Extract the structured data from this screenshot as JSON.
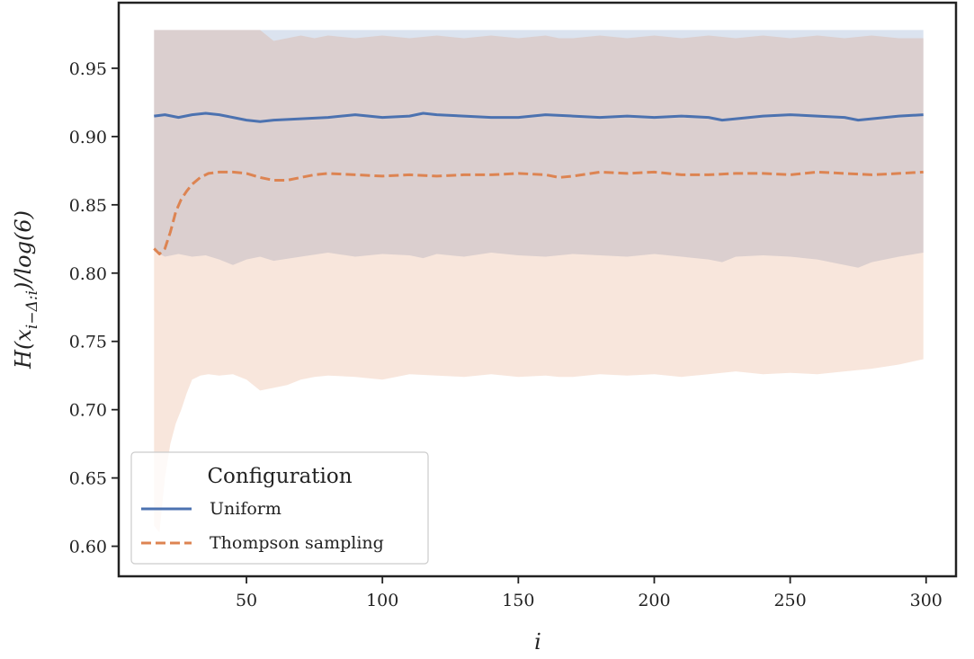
{
  "chart_data": {
    "type": "line",
    "xlabel": "i",
    "ylabel": "H(x_{i−Δ:i})/log(6)",
    "ylabel_parts": {
      "pre": "H(x",
      "sub": "i−Δ:i",
      "post": ")/log(6)"
    },
    "xlim": [
      3,
      311
    ],
    "ylim": [
      0.578,
      0.998
    ],
    "x_ticks": [
      50,
      100,
      150,
      200,
      250,
      300
    ],
    "y_ticks": [
      0.6,
      0.65,
      0.7,
      0.75,
      0.8,
      0.85,
      0.9,
      0.95
    ],
    "x_tick_labels": [
      "50",
      "100",
      "150",
      "200",
      "250",
      "300"
    ],
    "y_tick_labels": [
      "0.60",
      "0.65",
      "0.70",
      "0.75",
      "0.80",
      "0.85",
      "0.90",
      "0.95"
    ],
    "grid": false,
    "legend": {
      "title": "Configuration",
      "placement": "lower-left",
      "entries": [
        "Uniform",
        "Thompson sampling"
      ]
    },
    "series": [
      {
        "name": "Uniform",
        "color": "#4c72b0",
        "style": "solid",
        "x": [
          16,
          20,
          25,
          30,
          35,
          40,
          45,
          50,
          55,
          60,
          70,
          80,
          90,
          100,
          110,
          115,
          120,
          130,
          140,
          150,
          160,
          170,
          180,
          190,
          200,
          210,
          220,
          225,
          230,
          240,
          250,
          260,
          270,
          275,
          280,
          290,
          299
        ],
        "y": [
          0.915,
          0.916,
          0.914,
          0.916,
          0.917,
          0.916,
          0.914,
          0.912,
          0.911,
          0.912,
          0.913,
          0.914,
          0.916,
          0.914,
          0.915,
          0.917,
          0.916,
          0.915,
          0.914,
          0.914,
          0.916,
          0.915,
          0.914,
          0.915,
          0.914,
          0.915,
          0.914,
          0.912,
          0.913,
          0.915,
          0.916,
          0.915,
          0.914,
          0.912,
          0.913,
          0.915,
          0.916
        ],
        "band_upper": [
          0.978,
          0.978,
          0.978,
          0.978,
          0.978,
          0.978,
          0.978,
          0.978,
          0.978,
          0.978,
          0.978,
          0.978,
          0.978,
          0.978,
          0.978,
          0.978,
          0.978,
          0.978,
          0.978,
          0.978,
          0.978,
          0.978,
          0.978,
          0.978,
          0.978,
          0.978,
          0.978,
          0.978,
          0.978,
          0.978,
          0.978,
          0.978,
          0.978,
          0.978,
          0.978,
          0.978,
          0.978
        ],
        "band_lower": [
          0.816,
          0.812,
          0.814,
          0.812,
          0.813,
          0.81,
          0.806,
          0.81,
          0.812,
          0.809,
          0.812,
          0.815,
          0.812,
          0.814,
          0.813,
          0.811,
          0.814,
          0.812,
          0.815,
          0.813,
          0.812,
          0.814,
          0.813,
          0.812,
          0.814,
          0.812,
          0.81,
          0.808,
          0.812,
          0.813,
          0.812,
          0.81,
          0.806,
          0.804,
          0.808,
          0.812,
          0.815
        ]
      },
      {
        "name": "Thompson sampling",
        "color": "#dd8452",
        "style": "dashed",
        "x": [
          16,
          18,
          20,
          22,
          24,
          26,
          28,
          30,
          33,
          36,
          40,
          45,
          50,
          55,
          60,
          65,
          70,
          75,
          80,
          90,
          100,
          110,
          120,
          130,
          140,
          150,
          160,
          165,
          170,
          180,
          190,
          200,
          210,
          220,
          230,
          240,
          250,
          260,
          270,
          280,
          290,
          299
        ],
        "y": [
          0.818,
          0.814,
          0.818,
          0.83,
          0.845,
          0.854,
          0.86,
          0.865,
          0.87,
          0.873,
          0.874,
          0.874,
          0.873,
          0.87,
          0.868,
          0.868,
          0.87,
          0.872,
          0.873,
          0.872,
          0.871,
          0.872,
          0.871,
          0.872,
          0.872,
          0.873,
          0.872,
          0.87,
          0.871,
          0.874,
          0.873,
          0.874,
          0.872,
          0.872,
          0.873,
          0.873,
          0.872,
          0.874,
          0.873,
          0.872,
          0.873,
          0.874
        ],
        "band_upper": [
          0.978,
          0.978,
          0.978,
          0.978,
          0.978,
          0.978,
          0.978,
          0.978,
          0.978,
          0.978,
          0.978,
          0.978,
          0.978,
          0.978,
          0.97,
          0.972,
          0.974,
          0.972,
          0.974,
          0.972,
          0.974,
          0.972,
          0.974,
          0.972,
          0.974,
          0.972,
          0.974,
          0.972,
          0.972,
          0.974,
          0.972,
          0.974,
          0.972,
          0.974,
          0.972,
          0.974,
          0.972,
          0.974,
          0.972,
          0.974,
          0.972,
          0.972
        ],
        "band_lower": [
          0.615,
          0.61,
          0.65,
          0.675,
          0.69,
          0.7,
          0.712,
          0.722,
          0.725,
          0.726,
          0.725,
          0.726,
          0.722,
          0.714,
          0.716,
          0.718,
          0.722,
          0.724,
          0.725,
          0.724,
          0.722,
          0.726,
          0.725,
          0.724,
          0.726,
          0.724,
          0.725,
          0.724,
          0.724,
          0.726,
          0.725,
          0.726,
          0.724,
          0.726,
          0.728,
          0.726,
          0.727,
          0.726,
          0.728,
          0.73,
          0.733,
          0.737
        ]
      }
    ]
  }
}
